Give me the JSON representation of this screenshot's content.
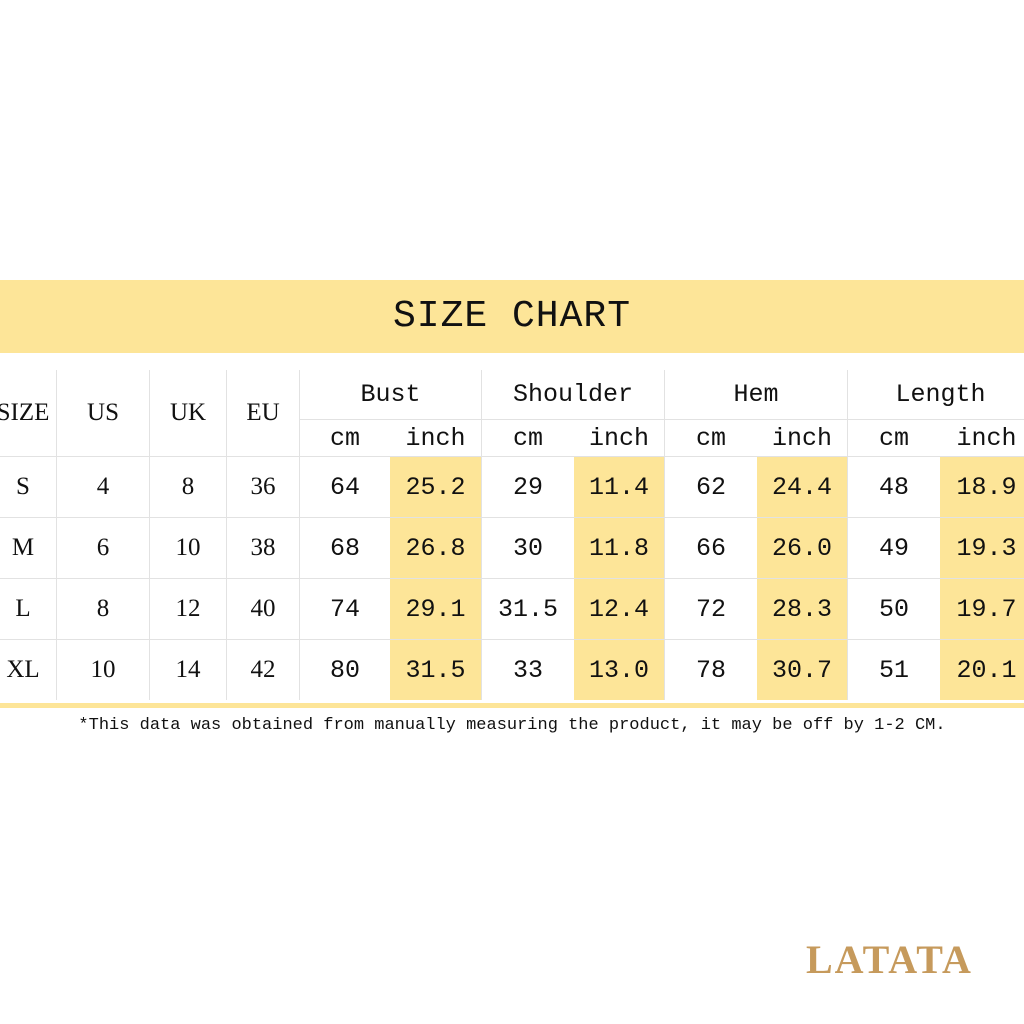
{
  "title": "SIZE CHART",
  "table": {
    "header": [
      "SIZE",
      "US",
      "UK",
      "EU"
    ],
    "groups": [
      "Bust",
      "Shoulder",
      "Hem",
      "Length"
    ],
    "units": [
      "cm",
      "inch"
    ],
    "rows": [
      [
        "S",
        "4",
        "8",
        "36",
        "64",
        "25.2",
        "29",
        "11.4",
        "62",
        "24.4",
        "48",
        "18.9"
      ],
      [
        "M",
        "6",
        "10",
        "38",
        "68",
        "26.8",
        "30",
        "11.8",
        "66",
        "26.0",
        "49",
        "19.3"
      ],
      [
        "L",
        "8",
        "12",
        "40",
        "74",
        "29.1",
        "31.5",
        "12.4",
        "72",
        "28.3",
        "50",
        "19.7"
      ],
      [
        "XL",
        "10",
        "14",
        "42",
        "80",
        "31.5",
        "33",
        "13.0",
        "78",
        "30.7",
        "51",
        "20.1"
      ]
    ]
  },
  "footnote": "*This data was obtained from manually measuring the product, it may be off by 1-2 CM.",
  "brand": "LATATA"
}
